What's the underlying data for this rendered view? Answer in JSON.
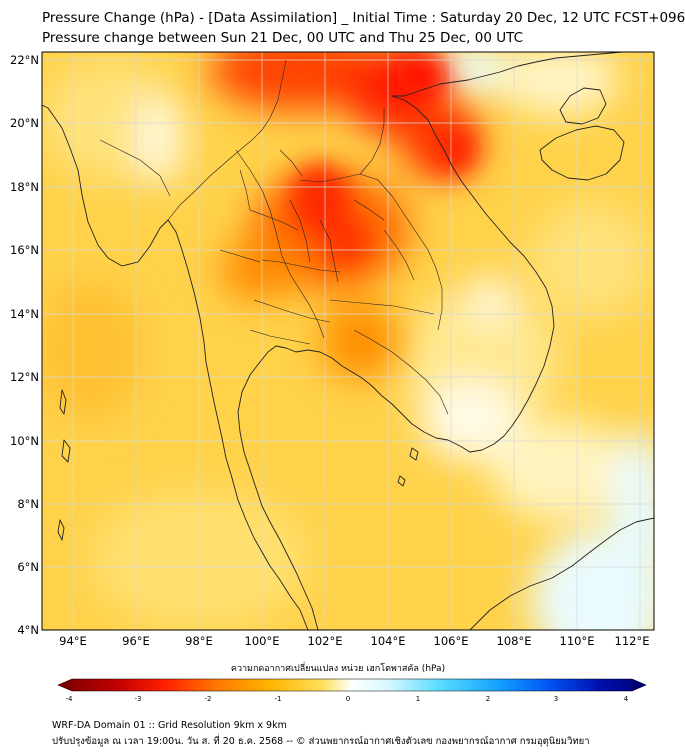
{
  "header": {
    "title_line1": "Pressure Change (hPa) - [Data Assimilation] _ Initial Time : Saturday 20 Dec, 12 UTC FCST+096",
    "title_line2": "Pressure change between Sun 21 Dec, 00 UTC and Thu 25 Dec, 00 UTC"
  },
  "map": {
    "lat_labels": [
      "22°N",
      "20°N",
      "18°N",
      "16°N",
      "14°N",
      "12°N",
      "10°N",
      "8°N",
      "6°N",
      "4°N"
    ],
    "lon_labels": [
      "94°E",
      "96°E",
      "98°E",
      "100°E",
      "102°E",
      "104°E",
      "106°E",
      "108°E",
      "110°E",
      "112°E"
    ],
    "colors": {
      "land_line": "#222222",
      "grid": "#d8d8d8",
      "base": "#ffd24a"
    }
  },
  "colorbar": {
    "title": "ความกดอากาศเปลี่ยนแปลง หน่วย เฮกโตพาสคัล (hPa)",
    "ticks": [
      "-4",
      "-3",
      "-2",
      "-1",
      "0",
      "1",
      "2",
      "3",
      "4"
    ],
    "colors": [
      "#7a0000",
      "#d40000",
      "#ff3a00",
      "#ff8a00",
      "#ffc400",
      "#ffe95a",
      "#fff8c0",
      "#ffffff",
      "#c8f6ff",
      "#40d8ff",
      "#0a8cff",
      "#0040e0",
      "#00006e"
    ]
  },
  "footer": {
    "line1": "WRF-DA Domain 01 :: Grid Resolution 9km x 9km",
    "line2": "ปรับปรุงข้อมูล ณ เวลา 19:00น. วัน ส. ที่ 20 ธ.ค. 2568 -- © ส่วนพยากรณ์อากาศเชิงตัวเลข กองพยากรณ์อากาศ กรมอุตุนิยมวิทยา"
  }
}
